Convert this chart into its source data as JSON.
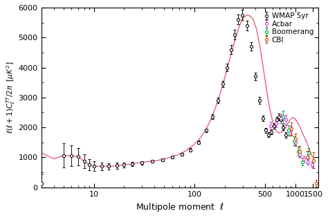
{
  "xlabel": "Multipole moment  $\\ell$",
  "ylabel": "$\\ell(\\ell+1)C_\\ell^{TT}/2\\pi$  [$\\mu K^2$]",
  "ylim": [
    0,
    6000
  ],
  "xlim": [
    3,
    1700
  ],
  "curve_color": "#e8607a",
  "wmap_color": "#111111",
  "acbar_color": "#cc44cc",
  "boomerang_color": "#00aa44",
  "cbi_color": "#cc4400",
  "wmap_data": {
    "ell": [
      3,
      5,
      6,
      7,
      8,
      9,
      10,
      12,
      14,
      17,
      20,
      24,
      30,
      38,
      48,
      60,
      75,
      90,
      110,
      130,
      150,
      170,
      190,
      210,
      230,
      250,
      270,
      295,
      330,
      365,
      400,
      440,
      475,
      510,
      545,
      580,
      615,
      650,
      685,
      720,
      760,
      800
    ],
    "cl": [
      130,
      1060,
      1050,
      1020,
      870,
      750,
      710,
      700,
      700,
      720,
      750,
      770,
      820,
      870,
      920,
      1000,
      1100,
      1250,
      1500,
      1900,
      2350,
      2900,
      3450,
      4000,
      4600,
      5100,
      5600,
      5750,
      5400,
      4700,
      3700,
      2900,
      2300,
      1900,
      1750,
      1850,
      2050,
      2250,
      2350,
      2250,
      2000,
      1750
    ],
    "err_lo": [
      300,
      400,
      350,
      280,
      220,
      180,
      160,
      130,
      110,
      95,
      80,
      70,
      60,
      55,
      50,
      45,
      45,
      50,
      55,
      65,
      80,
      95,
      110,
      125,
      140,
      155,
      165,
      170,
      165,
      145,
      125,
      110,
      95,
      85,
      80,
      85,
      95,
      105,
      110,
      110,
      100,
      100
    ],
    "err_hi": [
      300,
      400,
      350,
      280,
      220,
      180,
      160,
      130,
      110,
      95,
      80,
      70,
      60,
      55,
      50,
      45,
      45,
      50,
      55,
      65,
      80,
      95,
      110,
      125,
      140,
      155,
      165,
      170,
      165,
      145,
      125,
      110,
      95,
      85,
      80,
      85,
      95,
      105,
      110,
      110,
      100,
      100
    ]
  },
  "acbar_data": {
    "ell": [
      570,
      640,
      720,
      810,
      900,
      1000,
      1100,
      1215,
      1340,
      1460
    ],
    "cl": [
      2050,
      2150,
      2300,
      2250,
      1900,
      1500,
      1100,
      950,
      850,
      750
    ],
    "err_lo": [
      130,
      140,
      150,
      160,
      150,
      130,
      110,
      100,
      90,
      90
    ],
    "err_hi": [
      130,
      140,
      150,
      160,
      150,
      130,
      110,
      100,
      90,
      90
    ]
  },
  "boomerang_data": {
    "ell": [
      760,
      860,
      970,
      1070,
      1180,
      1360
    ],
    "cl": [
      2350,
      1900,
      1550,
      1200,
      850,
      1150
    ],
    "err_lo": [
      200,
      180,
      160,
      150,
      130,
      160
    ],
    "err_hi": [
      200,
      180,
      160,
      150,
      130,
      160
    ]
  },
  "cbi_data": {
    "ell": [
      910,
      1010,
      1110,
      1310,
      1520,
      1620
    ],
    "cl": [
      1950,
      1600,
      1200,
      1000,
      900,
      130
    ],
    "err_lo": [
      220,
      200,
      175,
      210,
      260,
      110
    ],
    "err_hi": [
      220,
      200,
      175,
      210,
      260,
      110
    ]
  },
  "theory_ell": [
    3,
    4,
    5,
    6,
    7,
    8,
    9,
    10,
    12,
    14,
    17,
    20,
    24,
    28,
    34,
    40,
    48,
    57,
    68,
    80,
    95,
    110,
    125,
    140,
    155,
    170,
    185,
    200,
    215,
    230,
    245,
    260,
    275,
    290,
    310,
    330,
    355,
    380,
    410,
    440,
    470,
    500,
    530,
    560,
    590,
    620,
    650,
    685,
    725,
    765,
    805,
    850,
    900,
    950,
    1000,
    1060,
    1130,
    1200,
    1300,
    1400,
    1500
  ],
  "theory_cl": [
    1150,
    950,
    1060,
    1050,
    1020,
    870,
    750,
    710,
    700,
    700,
    720,
    750,
    780,
    820,
    855,
    880,
    930,
    1000,
    1080,
    1200,
    1380,
    1580,
    1850,
    2150,
    2500,
    2880,
    3280,
    3680,
    4080,
    4450,
    4780,
    5080,
    5330,
    5530,
    5680,
    5750,
    5720,
    5620,
    5300,
    4800,
    4200,
    3600,
    3050,
    2600,
    2250,
    2000,
    1870,
    1820,
    1830,
    1900,
    2000,
    2150,
    2280,
    2330,
    2280,
    2150,
    1950,
    1750,
    1500,
    1200,
    980
  ]
}
